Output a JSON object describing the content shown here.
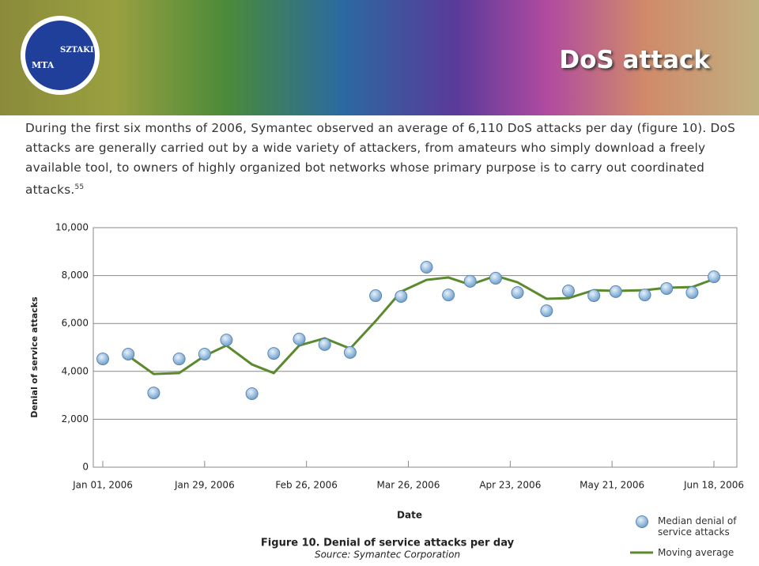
{
  "header": {
    "title": "DoS attack",
    "logo": [
      "MTA",
      "SZTAKI"
    ]
  },
  "body": {
    "text": "During the first six months of 2006, Symantec observed an average of 6,110 DoS attacks per day (figure 10). DoS attacks are generally carried out by a wide variety of attackers, from amateurs who simply download a freely available tool, to owners of highly organized bot networks whose primary purpose is to carry out coordinated attacks.",
    "footnote": "55"
  },
  "chart_data": {
    "type": "line",
    "title": "Figure 10. Denial of service attacks per day",
    "subtitle": "Source: Symantec Corporation",
    "x_label": "Date",
    "y_label": "Denial of service attacks",
    "x": [
      0,
      7,
      14,
      21,
      28,
      34,
      41,
      47,
      54,
      61,
      68,
      75,
      82,
      89,
      95,
      101,
      108,
      114,
      122,
      128,
      135,
      141,
      149,
      155,
      162,
      168
    ],
    "xlim": [
      0,
      168
    ],
    "xticks": [
      {
        "value": 0,
        "label": "Jan 01, 2006"
      },
      {
        "value": 28,
        "label": "Jan 29, 2006"
      },
      {
        "value": 56,
        "label": "Feb 26, 2006"
      },
      {
        "value": 84,
        "label": "Mar 26, 2006"
      },
      {
        "value": 112,
        "label": "Apr 23, 2006"
      },
      {
        "value": 140,
        "label": "May 21, 2006"
      },
      {
        "value": 168,
        "label": "Jun 18, 2006"
      }
    ],
    "ylim": [
      0,
      10000
    ],
    "yticks": [
      0,
      {
        "value": 2000,
        "label": "2,000"
      },
      {
        "value": 4000,
        "label": "4,000"
      },
      {
        "value": 6000,
        "label": "6,000"
      },
      {
        "value": 8000,
        "label": "8,000"
      },
      {
        "value": 10000,
        "label": "10,000"
      }
    ],
    "grid": true,
    "series": [
      {
        "name": "Median denial of service attacks",
        "style": "markers",
        "color": "#7aa8d4",
        "values": [
          4520,
          4720,
          3100,
          4520,
          4720,
          5310,
          3070,
          4750,
          5350,
          5120,
          4790,
          7160,
          7130,
          8350,
          7190,
          7760,
          7890,
          7290,
          6530,
          7360,
          7160,
          7330,
          7190,
          7460,
          7290,
          7950
        ]
      },
      {
        "name": "Moving average",
        "style": "line",
        "color": "#5b8a2e",
        "values": [
          null,
          4650,
          3890,
          3930,
          4650,
          5080,
          4290,
          3930,
          5080,
          5380,
          4950,
          6100,
          7330,
          7820,
          7920,
          7620,
          7990,
          7720,
          7030,
          7060,
          7390,
          7360,
          7390,
          7490,
          7520,
          7850
        ]
      }
    ]
  }
}
